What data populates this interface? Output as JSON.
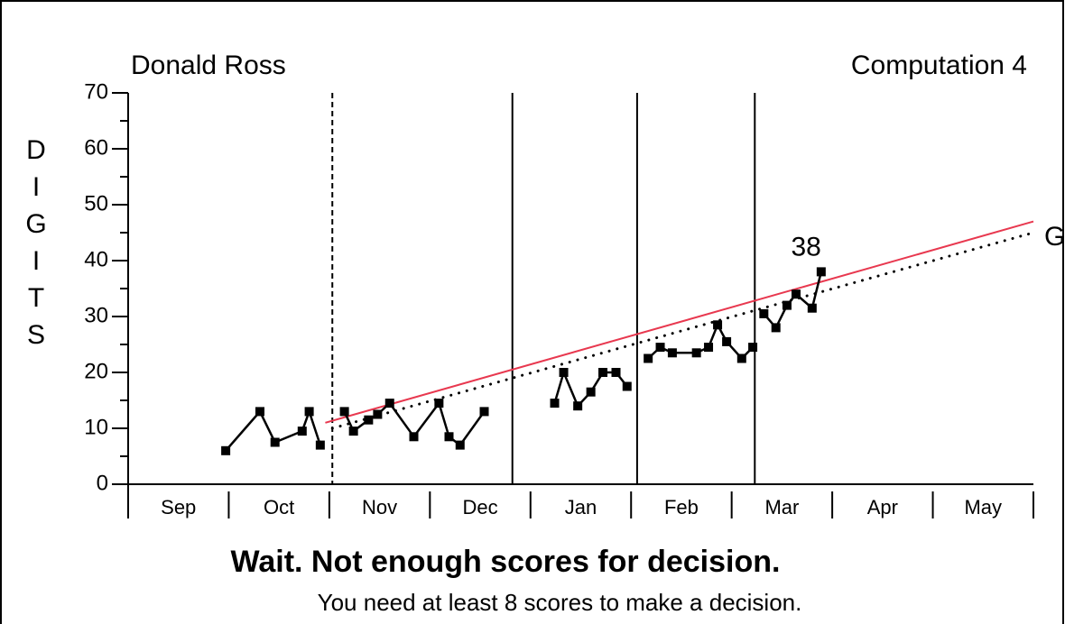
{
  "chart_data": {
    "type": "line",
    "title": "Donald Ross",
    "subtitle": "Computation 4",
    "ylabel": "DIGITS",
    "categories": [
      "Sep",
      "Oct",
      "Nov",
      "Dec",
      "Jan",
      "Feb",
      "Mar",
      "Apr",
      "May"
    ],
    "xlim": [
      0,
      9
    ],
    "xticks": [
      0,
      1,
      2,
      3,
      4,
      5,
      6,
      7,
      8,
      9
    ],
    "ylim": [
      0,
      70
    ],
    "yticks": [
      0,
      10,
      20,
      30,
      40,
      50,
      60,
      70
    ],
    "yminorticks": [
      5,
      15,
      25,
      35,
      45,
      55,
      65
    ],
    "x": [
      0.97,
      1.31,
      1.46,
      1.73,
      1.8,
      1.91,
      null,
      2.15,
      2.24,
      2.39,
      2.48,
      2.6,
      2.84,
      3.09,
      3.19,
      3.3,
      3.54,
      null,
      4.24,
      4.33,
      4.47,
      4.6,
      4.72,
      4.85,
      4.96,
      null,
      5.17,
      5.29,
      5.41,
      5.65,
      5.77,
      5.86,
      5.95,
      6.1,
      6.21,
      null,
      6.32,
      6.44,
      6.55,
      6.64,
      6.8,
      6.89
    ],
    "series": [
      {
        "color": "#000000",
        "values": [
          6,
          13,
          7.5,
          9.5,
          13,
          7,
          null,
          13,
          9.5,
          11.5,
          12.5,
          14.5,
          8.5,
          14.5,
          8.5,
          7,
          13,
          null,
          14.5,
          20,
          14,
          16.5,
          20,
          20,
          17.5,
          null,
          22.5,
          24.5,
          23.5,
          23.5,
          24.5,
          28.5,
          25.5,
          22.5,
          24.5,
          null,
          30.5,
          28,
          32,
          34,
          31.5,
          38
        ]
      }
    ],
    "phase_lines": [
      {
        "x": 2.03,
        "style": "dashed"
      },
      {
        "x": 3.82,
        "style": "solid"
      },
      {
        "x": 5.06,
        "style": "solid"
      },
      {
        "x": 6.23,
        "style": "solid"
      }
    ],
    "trend_line": {
      "x": [
        1.96,
        9
      ],
      "y": [
        11,
        47
      ],
      "color": "#e8384f"
    },
    "goal_line": {
      "x": [
        2.03,
        9
      ],
      "y": [
        10,
        45
      ],
      "label": "G"
    },
    "annotations": [
      {
        "text": "38",
        "x": 6.89,
        "y": 38
      }
    ],
    "message": "Wait. Not enough scores for decision.",
    "submessage": "You need at least 8 scores to make a decision."
  }
}
